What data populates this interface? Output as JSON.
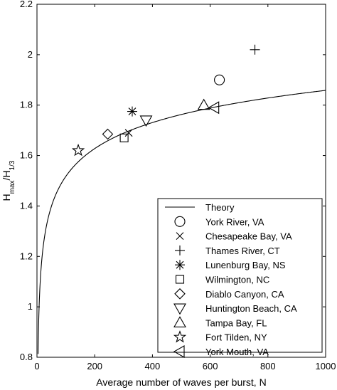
{
  "chart_data": {
    "type": "scatter",
    "xlabel": "Average number of waves per burst, N",
    "ylabel_main": "H",
    "ylabel_sub1": "max",
    "ylabel_mid": "/H",
    "ylabel_sub2": "1/3",
    "xlim": [
      0,
      1000
    ],
    "ylim": [
      0.8,
      2.2
    ],
    "xticks": [
      "0",
      "200",
      "400",
      "600",
      "800",
      "1000"
    ],
    "yticks": [
      "0.8",
      "1",
      "1.2",
      "1.4",
      "1.6",
      "1.8",
      "2",
      "2.2"
    ],
    "grid": false,
    "legend_position": "bottom-right",
    "theory": {
      "name": "Theory",
      "formula": "sqrt(ln(N)/2)"
    },
    "series": [
      {
        "name": "York River, VA",
        "marker": "circle",
        "x": 632,
        "y": 1.9
      },
      {
        "name": "Chesapeake Bay, VA",
        "marker": "x",
        "x": 318,
        "y": 1.69
      },
      {
        "name": "Thames River, CT",
        "marker": "plus",
        "x": 755,
        "y": 2.02
      },
      {
        "name": "Lunenburg Bay, NS",
        "marker": "asterisk",
        "x": 330,
        "y": 1.775
      },
      {
        "name": "Wilmington, NC",
        "marker": "square",
        "x": 302,
        "y": 1.67
      },
      {
        "name": "Diablo Canyon, CA",
        "marker": "diamond",
        "x": 245,
        "y": 1.685
      },
      {
        "name": "Huntington Beach, CA",
        "marker": "triangle-down",
        "x": 378,
        "y": 1.74
      },
      {
        "name": "Tampa Bay, FL",
        "marker": "triangle-up",
        "x": 578,
        "y": 1.8
      },
      {
        "name": "Fort Tilden, NY",
        "marker": "star",
        "x": 143,
        "y": 1.62
      },
      {
        "name": "York Mouth, VA",
        "marker": "triangle-left",
        "x": 615,
        "y": 1.79
      }
    ]
  }
}
